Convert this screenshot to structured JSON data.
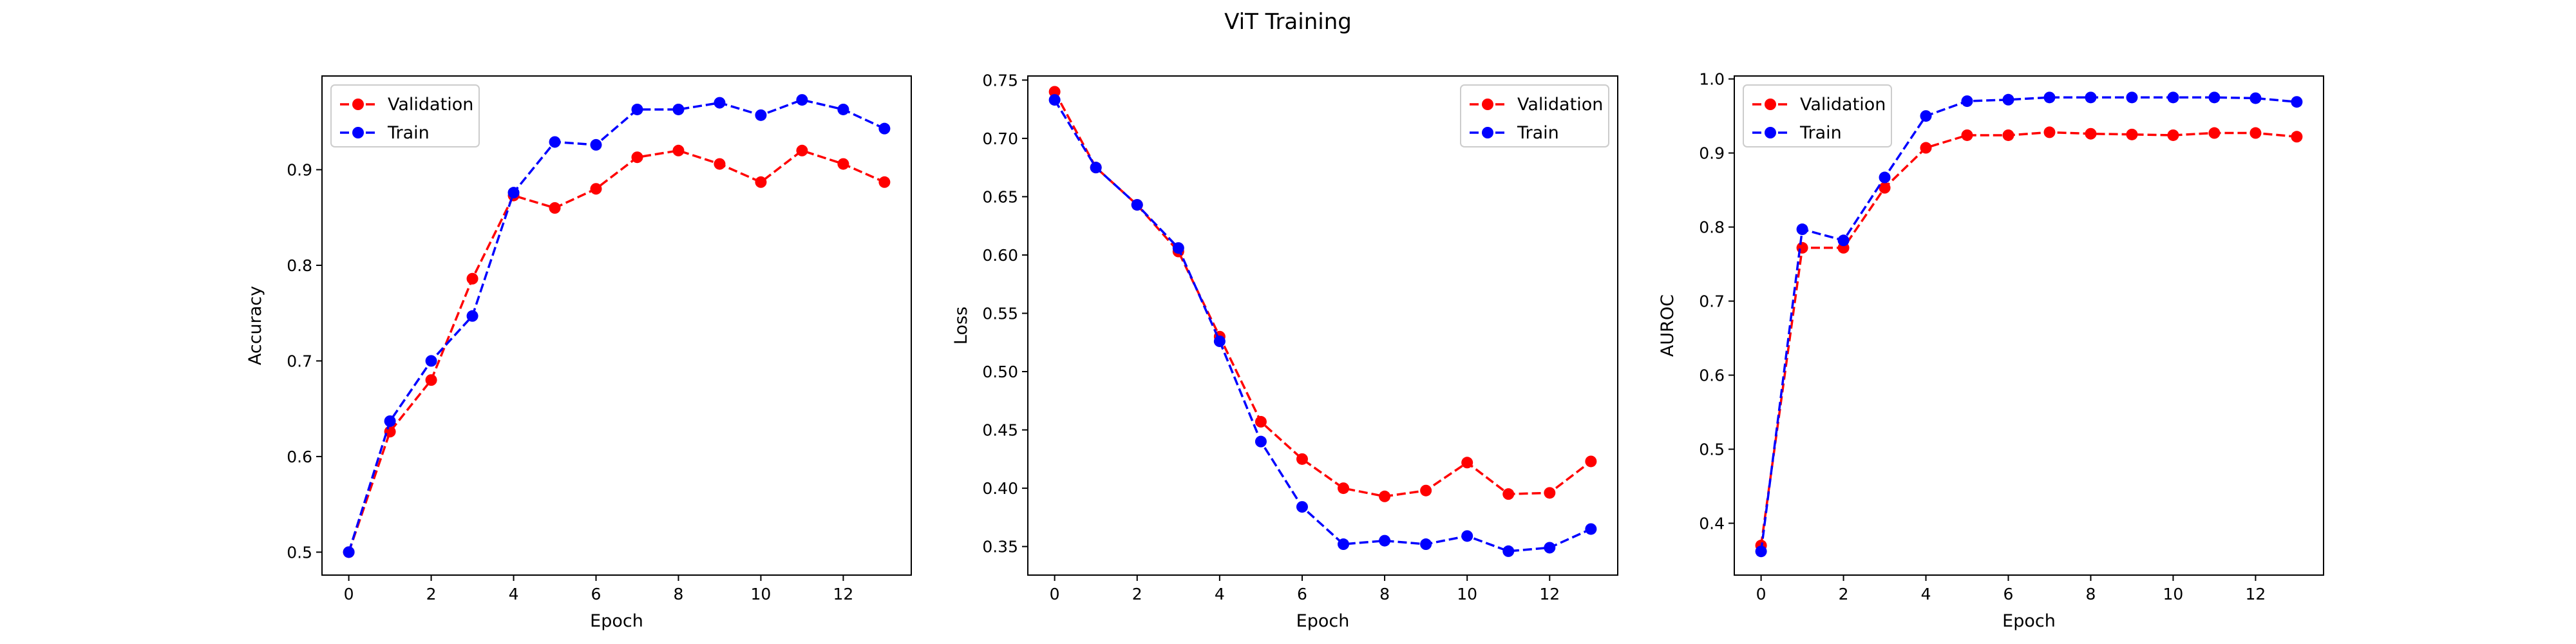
{
  "figure": {
    "title": "ViT Training"
  },
  "colors": {
    "validation": "#ff0000",
    "train": "#0000ff",
    "axes": "#000000",
    "legend_border": "#cccccc"
  },
  "chart_data": [
    {
      "type": "line",
      "title": "",
      "xlabel": "Epoch",
      "ylabel": "Accuracy",
      "xlim": [
        -0.65,
        13.65
      ],
      "ylim": [
        0.476,
        0.998
      ],
      "xticks": [
        0,
        2,
        4,
        6,
        8,
        10,
        12
      ],
      "yticks": [
        0.5,
        0.6,
        0.7,
        0.8,
        0.9
      ],
      "ytick_labels": [
        "0.5",
        "0.6",
        "0.7",
        "0.8",
        "0.9"
      ],
      "grid": false,
      "legend": "upper left",
      "x": [
        0,
        1,
        2,
        3,
        4,
        5,
        6,
        7,
        8,
        9,
        10,
        11,
        12,
        13
      ],
      "series": [
        {
          "name": "Validation",
          "color": "#ff0000",
          "linestyle": "dashed",
          "marker": "circle",
          "values": [
            0.5,
            0.626,
            0.68,
            0.786,
            0.873,
            0.86,
            0.88,
            0.913,
            0.92,
            0.906,
            0.887,
            0.92,
            0.906,
            0.887
          ]
        },
        {
          "name": "Train",
          "color": "#0000ff",
          "linestyle": "dashed",
          "marker": "circle",
          "values": [
            0.5,
            0.637,
            0.7,
            0.747,
            0.876,
            0.929,
            0.926,
            0.963,
            0.963,
            0.97,
            0.957,
            0.973,
            0.963,
            0.943
          ]
        }
      ]
    },
    {
      "type": "line",
      "title": "",
      "xlabel": "Epoch",
      "ylabel": "Loss",
      "xlim": [
        -0.65,
        13.65
      ],
      "ylim": [
        0.3255,
        0.7535
      ],
      "xticks": [
        0,
        2,
        4,
        6,
        8,
        10,
        12
      ],
      "yticks": [
        0.35,
        0.4,
        0.45,
        0.5,
        0.55,
        0.6,
        0.65,
        0.7,
        0.75
      ],
      "ytick_labels": [
        "0.35",
        "0.40",
        "0.45",
        "0.50",
        "0.55",
        "0.60",
        "0.65",
        "0.70",
        "0.75"
      ],
      "grid": false,
      "legend": "upper right",
      "x": [
        0,
        1,
        2,
        3,
        4,
        5,
        6,
        7,
        8,
        9,
        10,
        11,
        12,
        13
      ],
      "series": [
        {
          "name": "Validation",
          "color": "#ff0000",
          "linestyle": "dashed",
          "marker": "circle",
          "values": [
            0.74,
            0.675,
            0.643,
            0.603,
            0.53,
            0.457,
            0.425,
            0.4,
            0.393,
            0.398,
            0.422,
            0.395,
            0.396,
            0.423
          ]
        },
        {
          "name": "Train",
          "color": "#0000ff",
          "linestyle": "dashed",
          "marker": "circle",
          "values": [
            0.733,
            0.675,
            0.643,
            0.606,
            0.526,
            0.44,
            0.384,
            0.352,
            0.355,
            0.352,
            0.359,
            0.346,
            0.349,
            0.365
          ]
        }
      ]
    },
    {
      "type": "line",
      "title": "",
      "xlabel": "Epoch",
      "ylabel": "AUROC",
      "xlim": [
        -0.65,
        13.65
      ],
      "ylim": [
        0.33,
        1.004
      ],
      "xticks": [
        0,
        2,
        4,
        6,
        8,
        10,
        12
      ],
      "yticks": [
        0.4,
        0.5,
        0.6,
        0.7,
        0.8,
        0.9,
        1.0
      ],
      "ytick_labels": [
        "0.4",
        "0.5",
        "0.6",
        "0.7",
        "0.8",
        "0.9",
        "1.0"
      ],
      "grid": false,
      "legend": "upper left",
      "x": [
        0,
        1,
        2,
        3,
        4,
        5,
        6,
        7,
        8,
        9,
        10,
        11,
        12,
        13
      ],
      "series": [
        {
          "name": "Validation",
          "color": "#ff0000",
          "linestyle": "dashed",
          "marker": "circle",
          "values": [
            0.37,
            0.772,
            0.772,
            0.853,
            0.907,
            0.924,
            0.924,
            0.928,
            0.926,
            0.925,
            0.924,
            0.927,
            0.927,
            0.922
          ]
        },
        {
          "name": "Train",
          "color": "#0000ff",
          "linestyle": "dashed",
          "marker": "circle",
          "values": [
            0.362,
            0.797,
            0.782,
            0.867,
            0.95,
            0.97,
            0.972,
            0.975,
            0.975,
            0.975,
            0.975,
            0.975,
            0.974,
            0.969
          ]
        }
      ]
    }
  ]
}
